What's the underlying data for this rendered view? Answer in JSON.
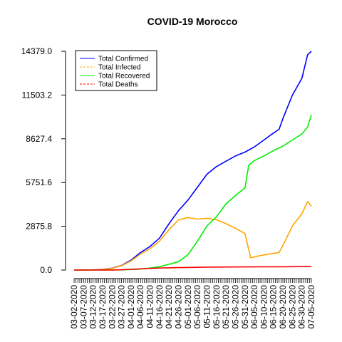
{
  "chart_data": {
    "type": "line",
    "title": "COVID-19 Morocco",
    "xlabel": "",
    "ylabel": "",
    "ylim": [
      0,
      14379
    ],
    "y_ticks": [
      0.0,
      2875.8,
      5751.6,
      8627.4,
      11503.2,
      14379.0
    ],
    "y_tick_labels": [
      "0.0",
      "2875.8",
      "5751.6",
      "8627.4",
      "11503.2",
      "14379.0"
    ],
    "x_start": "2020-03-02",
    "x_end": "2020-07-05",
    "x_tick_labels": [
      "03-02-2020",
      "03-07-2020",
      "03-12-2020",
      "03-17-2020",
      "03-22-2020",
      "03-27-2020",
      "04-01-2020",
      "04-06-2020",
      "04-11-2020",
      "04-16-2020",
      "04-21-2020",
      "04-26-2020",
      "05-01-2020",
      "05-06-2020",
      "05-11-2020",
      "05-16-2020",
      "05-21-2020",
      "05-26-2020",
      "05-31-2020",
      "06-05-2020",
      "06-10-2020",
      "06-15-2020",
      "06-20-2020",
      "06-25-2020",
      "06-30-2020",
      "07-05-2020"
    ],
    "legend_position": "top-left",
    "grid": false,
    "series": [
      {
        "name": "Total Confirmed",
        "color": "#0000ff",
        "dash": "solid",
        "points": [
          [
            "2020-03-02",
            0
          ],
          [
            "2020-03-12",
            10
          ],
          [
            "2020-03-17",
            40
          ],
          [
            "2020-03-22",
            120
          ],
          [
            "2020-03-27",
            300
          ],
          [
            "2020-04-01",
            650
          ],
          [
            "2020-04-06",
            1150
          ],
          [
            "2020-04-11",
            1550
          ],
          [
            "2020-04-16",
            2100
          ],
          [
            "2020-04-21",
            3050
          ],
          [
            "2020-04-26",
            3900
          ],
          [
            "2020-05-01",
            4600
          ],
          [
            "2020-05-06",
            5450
          ],
          [
            "2020-05-11",
            6300
          ],
          [
            "2020-05-16",
            6800
          ],
          [
            "2020-05-21",
            7150
          ],
          [
            "2020-05-26",
            7500
          ],
          [
            "2020-05-31",
            7750
          ],
          [
            "2020-06-05",
            8100
          ],
          [
            "2020-06-10",
            8550
          ],
          [
            "2020-06-15",
            9000
          ],
          [
            "2020-06-18",
            9250
          ],
          [
            "2020-06-20",
            9950
          ],
          [
            "2020-06-25",
            11500
          ],
          [
            "2020-06-30",
            12600
          ],
          [
            "2020-07-03",
            14150
          ],
          [
            "2020-07-05",
            14379
          ]
        ]
      },
      {
        "name": "Total Infected",
        "color": "#ffa500",
        "dash": "solid",
        "points": [
          [
            "2020-03-02",
            0
          ],
          [
            "2020-03-12",
            10
          ],
          [
            "2020-03-17",
            35
          ],
          [
            "2020-03-22",
            110
          ],
          [
            "2020-03-27",
            280
          ],
          [
            "2020-04-01",
            600
          ],
          [
            "2020-04-06",
            1050
          ],
          [
            "2020-04-11",
            1400
          ],
          [
            "2020-04-16",
            1900
          ],
          [
            "2020-04-21",
            2650
          ],
          [
            "2020-04-26",
            3300
          ],
          [
            "2020-05-01",
            3450
          ],
          [
            "2020-05-06",
            3350
          ],
          [
            "2020-05-11",
            3400
          ],
          [
            "2020-05-16",
            3300
          ],
          [
            "2020-05-21",
            3050
          ],
          [
            "2020-05-26",
            2750
          ],
          [
            "2020-05-31",
            2400
          ],
          [
            "2020-06-03",
            800
          ],
          [
            "2020-06-08",
            950
          ],
          [
            "2020-06-13",
            1050
          ],
          [
            "2020-06-18",
            1150
          ],
          [
            "2020-06-20",
            1600
          ],
          [
            "2020-06-25",
            2900
          ],
          [
            "2020-06-30",
            3700
          ],
          [
            "2020-07-03",
            4500
          ],
          [
            "2020-07-05",
            4200
          ]
        ]
      },
      {
        "name": "Total Recovered",
        "color": "#00ee00",
        "dash": "solid",
        "points": [
          [
            "2020-03-02",
            0
          ],
          [
            "2020-03-27",
            10
          ],
          [
            "2020-04-06",
            60
          ],
          [
            "2020-04-11",
            130
          ],
          [
            "2020-04-16",
            220
          ],
          [
            "2020-04-21",
            380
          ],
          [
            "2020-04-26",
            550
          ],
          [
            "2020-05-01",
            1000
          ],
          [
            "2020-05-06",
            1900
          ],
          [
            "2020-05-11",
            2900
          ],
          [
            "2020-05-16",
            3500
          ],
          [
            "2020-05-21",
            4350
          ],
          [
            "2020-05-26",
            4900
          ],
          [
            "2020-05-31",
            5400
          ],
          [
            "2020-06-02",
            6900
          ],
          [
            "2020-06-05",
            7200
          ],
          [
            "2020-06-10",
            7500
          ],
          [
            "2020-06-15",
            7850
          ],
          [
            "2020-06-20",
            8150
          ],
          [
            "2020-06-25",
            8550
          ],
          [
            "2020-06-30",
            8950
          ],
          [
            "2020-07-03",
            9400
          ],
          [
            "2020-07-05",
            10200
          ]
        ]
      },
      {
        "name": "Total Deaths",
        "color": "#ff0000",
        "dash": "solid",
        "points": [
          [
            "2020-03-02",
            0
          ],
          [
            "2020-03-22",
            3
          ],
          [
            "2020-03-27",
            20
          ],
          [
            "2020-04-01",
            50
          ],
          [
            "2020-04-06",
            80
          ],
          [
            "2020-04-11",
            110
          ],
          [
            "2020-04-16",
            130
          ],
          [
            "2020-04-26",
            160
          ],
          [
            "2020-05-11",
            190
          ],
          [
            "2020-06-01",
            205
          ],
          [
            "2020-06-20",
            215
          ],
          [
            "2020-07-05",
            230
          ]
        ]
      }
    ],
    "legend_styles": [
      "solid",
      "dashed",
      "solid",
      "dashed"
    ]
  }
}
